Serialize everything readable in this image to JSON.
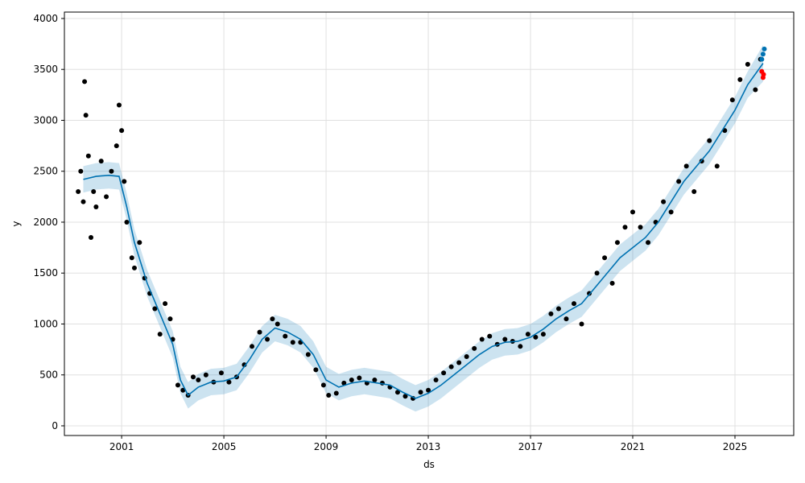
{
  "chart_data": {
    "type": "line",
    "xlabel": "ds",
    "ylabel": "y",
    "xlim": [
      1998.76,
      2027.3
    ],
    "ylim": [
      -95,
      4063
    ],
    "xticks": [
      2001,
      2005,
      2009,
      2013,
      2017,
      2021,
      2025
    ],
    "yticks": [
      0,
      500,
      1000,
      1500,
      2000,
      2500,
      3000,
      3500,
      4000
    ],
    "grid": true,
    "series": [
      {
        "type": "band",
        "color": "#0072B2",
        "x": [
          1999.5,
          2000,
          2000.5,
          2000.9,
          2001.2,
          2001.5,
          2002,
          2002.5,
          2003,
          2003.3,
          2003.6,
          2004,
          2004.5,
          2005,
          2005.5,
          2006,
          2006.5,
          2007,
          2007.5,
          2008,
          2008.5,
          2009,
          2009.5,
          2010,
          2010.5,
          2011,
          2011.5,
          2012,
          2012.5,
          2013,
          2013.5,
          2014,
          2014.5,
          2015,
          2015.5,
          2016,
          2016.5,
          2017,
          2017.5,
          2018,
          2018.5,
          2019,
          2019.5,
          2020,
          2020.5,
          2021,
          2021.5,
          2022,
          2022.5,
          2023,
          2023.5,
          2024,
          2024.5,
          2025,
          2025.5,
          2026.1
        ],
        "lower": [
          2290,
          2320,
          2330,
          2320,
          2020,
          1670,
          1270,
          970,
          670,
          320,
          170,
          250,
          300,
          310,
          350,
          520,
          720,
          830,
          790,
          720,
          570,
          320,
          250,
          290,
          310,
          290,
          270,
          200,
          140,
          190,
          270,
          370,
          470,
          570,
          650,
          690,
          700,
          740,
          820,
          920,
          1000,
          1070,
          1220,
          1370,
          1520,
          1620,
          1720,
          1870,
          2070,
          2270,
          2420,
          2570,
          2770,
          2970,
          3220,
          3380
        ],
        "upper": [
          2550,
          2580,
          2590,
          2580,
          2280,
          1930,
          1530,
          1230,
          930,
          580,
          430,
          510,
          560,
          570,
          610,
          780,
          980,
          1090,
          1050,
          980,
          830,
          580,
          510,
          550,
          570,
          550,
          530,
          460,
          400,
          450,
          530,
          630,
          730,
          830,
          910,
          950,
          960,
          1000,
          1080,
          1180,
          1260,
          1330,
          1480,
          1630,
          1780,
          1880,
          1980,
          2130,
          2330,
          2530,
          2680,
          2830,
          3030,
          3230,
          3480,
          3740
        ]
      },
      {
        "type": "scatter",
        "color": "#000000",
        "x": [
          1999.3,
          1999.4,
          1999.5,
          1999.55,
          1999.6,
          1999.7,
          1999.8,
          1999.9,
          2000.0,
          2000.2,
          2000.4,
          2000.6,
          2000.8,
          2000.9,
          2001.0,
          2001.1,
          2001.2,
          2001.4,
          2001.5,
          2001.7,
          2001.9,
          2002.1,
          2002.3,
          2002.5,
          2002.7,
          2002.9,
          2003.0,
          2003.2,
          2003.4,
          2003.6,
          2003.8,
          2004.0,
          2004.3,
          2004.6,
          2004.9,
          2005.2,
          2005.5,
          2005.8,
          2006.1,
          2006.4,
          2006.7,
          2006.9,
          2007.1,
          2007.4,
          2007.7,
          2008.0,
          2008.3,
          2008.6,
          2008.9,
          2009.1,
          2009.4,
          2009.7,
          2010.0,
          2010.3,
          2010.6,
          2010.9,
          2011.2,
          2011.5,
          2011.8,
          2012.1,
          2012.4,
          2012.7,
          2013.0,
          2013.3,
          2013.6,
          2013.9,
          2014.2,
          2014.5,
          2014.8,
          2015.1,
          2015.4,
          2015.7,
          2016.0,
          2016.3,
          2016.6,
          2016.9,
          2017.2,
          2017.5,
          2017.8,
          2018.1,
          2018.4,
          2018.7,
          2019.0,
          2019.3,
          2019.6,
          2019.9,
          2020.2,
          2020.4,
          2020.7,
          2021.0,
          2021.3,
          2021.6,
          2021.9,
          2022.2,
          2022.5,
          2022.8,
          2023.1,
          2023.4,
          2023.7,
          2024.0,
          2024.3,
          2024.6,
          2024.9,
          2025.2,
          2025.5,
          2025.8,
          2026.0
        ],
        "values": [
          2300,
          2500,
          2200,
          3380,
          3050,
          2650,
          1850,
          2300,
          2150,
          2600,
          2250,
          2500,
          2750,
          3150,
          2900,
          2400,
          2000,
          1650,
          1550,
          1800,
          1450,
          1300,
          1150,
          900,
          1200,
          1050,
          850,
          400,
          350,
          300,
          480,
          450,
          500,
          430,
          520,
          430,
          480,
          600,
          780,
          920,
          850,
          1050,
          1000,
          880,
          820,
          820,
          700,
          550,
          400,
          300,
          320,
          420,
          450,
          470,
          420,
          450,
          420,
          380,
          330,
          290,
          270,
          330,
          350,
          450,
          520,
          580,
          620,
          680,
          760,
          850,
          880,
          800,
          850,
          830,
          780,
          900,
          870,
          900,
          1100,
          1150,
          1050,
          1200,
          1000,
          1300,
          1500,
          1650,
          1400,
          1800,
          1950,
          2100,
          1950,
          1800,
          2000,
          2200,
          2100,
          2400,
          2550,
          2300,
          2600,
          2800,
          2550,
          2900,
          3200,
          3400,
          3550,
          3300,
          3600
        ]
      },
      {
        "type": "line",
        "color": "#0072B2",
        "x": [
          1999.5,
          2000,
          2000.5,
          2000.9,
          2001.2,
          2001.5,
          2002,
          2002.5,
          2003,
          2003.3,
          2003.6,
          2004,
          2004.5,
          2005,
          2005.5,
          2006,
          2006.5,
          2007,
          2007.5,
          2008,
          2008.5,
          2009,
          2009.5,
          2010,
          2010.5,
          2011,
          2011.5,
          2012,
          2012.5,
          2013,
          2013.5,
          2014,
          2014.5,
          2015,
          2015.5,
          2016,
          2016.5,
          2017,
          2017.5,
          2018,
          2018.5,
          2019,
          2019.5,
          2020,
          2020.5,
          2021,
          2021.5,
          2022,
          2022.5,
          2023,
          2023.5,
          2024,
          2024.5,
          2025,
          2025.5,
          2026.1
        ],
        "values": [
          2420,
          2450,
          2460,
          2450,
          2150,
          1800,
          1400,
          1100,
          800,
          450,
          300,
          380,
          430,
          440,
          480,
          650,
          850,
          960,
          920,
          850,
          700,
          450,
          380,
          420,
          440,
          420,
          400,
          330,
          270,
          320,
          400,
          500,
          600,
          700,
          780,
          820,
          830,
          870,
          950,
          1050,
          1130,
          1200,
          1350,
          1500,
          1650,
          1750,
          1850,
          2000,
          2200,
          2400,
          2550,
          2700,
          2900,
          3100,
          3350,
          3560
        ]
      },
      {
        "type": "scatter",
        "color": "#0072B2",
        "x": [
          2026.05,
          2026.1,
          2026.15
        ],
        "values": [
          3600,
          3650,
          3700
        ]
      },
      {
        "type": "scatter",
        "color": "#ff0000",
        "x": [
          2026.05,
          2026.1,
          2026.12
        ],
        "values": [
          3480,
          3420,
          3450
        ]
      }
    ]
  }
}
